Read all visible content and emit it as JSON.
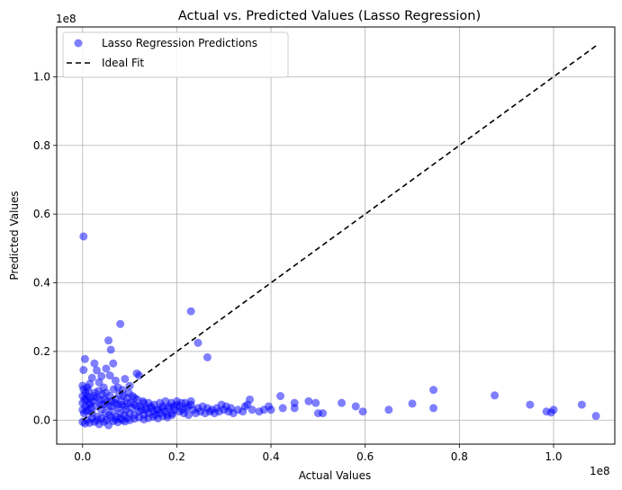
{
  "chart_data": {
    "type": "scatter",
    "title": "Actual vs. Predicted Values (Lasso Regression)",
    "xlabel": "Actual Values",
    "ylabel": "Predicted Values",
    "x_offset_label": "1e8",
    "y_offset_label": "1e8",
    "xlim": [
      -0.055,
      1.13
    ],
    "ylim": [
      -0.07,
      1.145
    ],
    "x_ticks": [
      0.0,
      0.2,
      0.4,
      0.6,
      0.8,
      1.0
    ],
    "y_ticks": [
      0.0,
      0.2,
      0.4,
      0.6,
      0.8,
      1.0
    ],
    "x_tick_labels": [
      "0.0",
      "0.2",
      "0.4",
      "0.6",
      "0.8",
      "1.0"
    ],
    "y_tick_labels": [
      "0.0",
      "0.2",
      "0.4",
      "0.6",
      "0.8",
      "1.0"
    ],
    "grid": true,
    "legend_position": "upper-left",
    "series": [
      {
        "name": "Lasso Regression Predictions",
        "kind": "scatter",
        "color": "#0000ff",
        "opacity": 0.5,
        "points": [
          [
            0.002,
            0.535
          ],
          [
            0.005,
            0.178
          ],
          [
            0.002,
            0.146
          ],
          [
            0.0,
            0.1
          ],
          [
            0.01,
            0.095
          ],
          [
            0.015,
            0.105
          ],
          [
            0.02,
            0.123
          ],
          [
            0.025,
            0.165
          ],
          [
            0.03,
            0.145
          ],
          [
            0.035,
            0.11
          ],
          [
            0.04,
            0.128
          ],
          [
            0.045,
            0.095
          ],
          [
            0.05,
            0.15
          ],
          [
            0.055,
            0.232
          ],
          [
            0.058,
            0.13
          ],
          [
            0.06,
            0.205
          ],
          [
            0.065,
            0.165
          ],
          [
            0.07,
            0.115
          ],
          [
            0.075,
            0.095
          ],
          [
            0.08,
            0.28
          ],
          [
            0.085,
            0.088
          ],
          [
            0.09,
            0.12
          ],
          [
            0.1,
            0.1
          ],
          [
            0.11,
            0.065
          ],
          [
            0.115,
            0.136
          ],
          [
            0.12,
            0.13
          ],
          [
            0.13,
            0.05
          ],
          [
            0.23,
            0.317
          ],
          [
            0.245,
            0.225
          ],
          [
            0.265,
            0.183
          ],
          [
            0.003,
            0.02
          ],
          [
            0.006,
            0.04
          ],
          [
            0.008,
            0.06
          ],
          [
            0.012,
            0.03
          ],
          [
            0.016,
            0.05
          ],
          [
            0.02,
            0.02
          ],
          [
            0.024,
            0.07
          ],
          [
            0.028,
            0.04
          ],
          [
            0.032,
            0.01
          ],
          [
            0.036,
            0.06
          ],
          [
            0.04,
            0.03
          ],
          [
            0.044,
            0.045
          ],
          [
            0.048,
            0.02
          ],
          [
            0.052,
            0.055
          ],
          [
            0.056,
            0.015
          ],
          [
            0.06,
            0.04
          ],
          [
            0.064,
            0.025
          ],
          [
            0.068,
            0.05
          ],
          [
            0.072,
            0.01
          ],
          [
            0.076,
            0.035
          ],
          [
            0.08,
            0.02
          ],
          [
            0.084,
            0.045
          ],
          [
            0.088,
            0.015
          ],
          [
            0.092,
            0.03
          ],
          [
            0.096,
            0.05
          ],
          [
            0.1,
            0.02
          ],
          [
            0.105,
            0.035
          ],
          [
            0.11,
            0.015
          ],
          [
            0.115,
            0.04
          ],
          [
            0.12,
            0.025
          ],
          [
            0.125,
            0.03
          ],
          [
            0.13,
            0.015
          ],
          [
            0.135,
            0.035
          ],
          [
            0.14,
            0.02
          ],
          [
            0.145,
            0.04
          ],
          [
            0.15,
            0.025
          ],
          [
            0.155,
            0.015
          ],
          [
            0.16,
            0.03
          ],
          [
            0.165,
            0.02
          ],
          [
            0.17,
            0.035
          ],
          [
            0.175,
            0.025
          ],
          [
            0.18,
            0.015
          ],
          [
            0.185,
            0.04
          ],
          [
            0.19,
            0.02
          ],
          [
            0.195,
            0.03
          ],
          [
            0.2,
            0.045
          ],
          [
            0.205,
            0.025
          ],
          [
            0.21,
            0.05
          ],
          [
            0.215,
            0.02
          ],
          [
            0.22,
            0.035
          ],
          [
            0.225,
            0.015
          ],
          [
            0.23,
            0.045
          ],
          [
            0.235,
            0.03
          ],
          [
            0.24,
            0.02
          ],
          [
            0.245,
            0.035
          ],
          [
            0.25,
            0.025
          ],
          [
            0.255,
            0.04
          ],
          [
            0.26,
            0.02
          ],
          [
            0.265,
            0.035
          ],
          [
            0.27,
            0.025
          ],
          [
            0.275,
            0.03
          ],
          [
            0.28,
            0.02
          ],
          [
            0.285,
            0.035
          ],
          [
            0.29,
            0.025
          ],
          [
            0.295,
            0.045
          ],
          [
            0.3,
            0.03
          ],
          [
            0.305,
            0.04
          ],
          [
            0.31,
            0.025
          ],
          [
            0.315,
            0.035
          ],
          [
            0.32,
            0.02
          ],
          [
            0.33,
            0.03
          ],
          [
            0.34,
            0.025
          ],
          [
            0.345,
            0.04
          ],
          [
            0.35,
            0.045
          ],
          [
            0.355,
            0.06
          ],
          [
            0.36,
            0.03
          ],
          [
            0.375,
            0.025
          ],
          [
            0.385,
            0.03
          ],
          [
            0.395,
            0.04
          ],
          [
            0.4,
            0.03
          ],
          [
            0.42,
            0.07
          ],
          [
            0.425,
            0.035
          ],
          [
            0.45,
            0.035
          ],
          [
            0.45,
            0.05
          ],
          [
            0.48,
            0.055
          ],
          [
            0.495,
            0.05
          ],
          [
            0.5,
            0.02
          ],
          [
            0.51,
            0.02
          ],
          [
            0.55,
            0.05
          ],
          [
            0.58,
            0.04
          ],
          [
            0.595,
            0.025
          ],
          [
            0.65,
            0.03
          ],
          [
            0.7,
            0.048
          ],
          [
            0.745,
            0.088
          ],
          [
            0.745,
            0.035
          ],
          [
            0.875,
            0.072
          ],
          [
            0.95,
            0.045
          ],
          [
            0.985,
            0.025
          ],
          [
            0.995,
            0.022
          ],
          [
            1.0,
            0.03
          ],
          [
            1.06,
            0.045
          ],
          [
            1.09,
            0.012
          ],
          [
            0.0,
            -0.005
          ],
          [
            0.005,
            -0.01
          ],
          [
            0.01,
            0.0
          ],
          [
            0.015,
            -0.008
          ],
          [
            0.02,
            0.005
          ],
          [
            0.025,
            -0.005
          ],
          [
            0.03,
            0.0
          ],
          [
            0.035,
            -0.012
          ],
          [
            0.04,
            0.005
          ],
          [
            0.045,
            -0.005
          ],
          [
            0.05,
            0.0
          ],
          [
            0.055,
            -0.015
          ],
          [
            0.06,
            0.008
          ],
          [
            0.065,
            -0.003
          ],
          [
            0.07,
            0.002
          ],
          [
            0.075,
            -0.006
          ],
          [
            0.08,
            0.004
          ],
          [
            0.085,
            0.0
          ],
          [
            0.09,
            -0.004
          ],
          [
            0.095,
            0.006
          ],
          [
            0.1,
            0.0
          ],
          [
            0.11,
            0.004
          ],
          [
            0.12,
            0.008
          ],
          [
            0.13,
            0.002
          ],
          [
            0.14,
            0.006
          ],
          [
            0.15,
            0.01
          ],
          [
            0.16,
            0.005
          ],
          [
            0.17,
            0.012
          ],
          [
            0.18,
            0.008
          ],
          [
            0.19,
            0.015
          ],
          [
            0.0,
            0.05
          ],
          [
            0.0,
            0.03
          ],
          [
            0.0,
            0.07
          ],
          [
            0.002,
            0.09
          ],
          [
            0.004,
            0.06
          ],
          [
            0.006,
            0.08
          ],
          [
            0.008,
            0.025
          ],
          [
            0.01,
            0.07
          ],
          [
            0.012,
            0.085
          ],
          [
            0.014,
            0.045
          ],
          [
            0.016,
            0.065
          ],
          [
            0.018,
            0.035
          ],
          [
            0.022,
            0.055
          ],
          [
            0.026,
            0.08
          ],
          [
            0.03,
            0.065
          ],
          [
            0.034,
            0.085
          ],
          [
            0.038,
            0.045
          ],
          [
            0.042,
            0.075
          ],
          [
            0.046,
            0.06
          ],
          [
            0.05,
            0.08
          ],
          [
            0.054,
            0.04
          ],
          [
            0.058,
            0.07
          ],
          [
            0.062,
            0.055
          ],
          [
            0.066,
            0.09
          ],
          [
            0.07,
            0.06
          ],
          [
            0.074,
            0.045
          ],
          [
            0.078,
            0.075
          ],
          [
            0.082,
            0.055
          ],
          [
            0.086,
            0.07
          ],
          [
            0.09,
            0.04
          ],
          [
            0.094,
            0.065
          ],
          [
            0.098,
            0.08
          ],
          [
            0.102,
            0.05
          ],
          [
            0.106,
            0.07
          ],
          [
            0.11,
            0.045
          ],
          [
            0.116,
            0.06
          ],
          [
            0.122,
            0.04
          ],
          [
            0.128,
            0.055
          ],
          [
            0.134,
            0.03
          ],
          [
            0.14,
            0.05
          ],
          [
            0.146,
            0.035
          ],
          [
            0.152,
            0.045
          ],
          [
            0.158,
            0.03
          ],
          [
            0.164,
            0.05
          ],
          [
            0.17,
            0.04
          ],
          [
            0.176,
            0.055
          ],
          [
            0.182,
            0.035
          ],
          [
            0.188,
            0.05
          ],
          [
            0.194,
            0.04
          ],
          [
            0.2,
            0.055
          ],
          [
            0.206,
            0.04
          ],
          [
            0.212,
            0.03
          ],
          [
            0.218,
            0.05
          ],
          [
            0.224,
            0.04
          ],
          [
            0.23,
            0.055
          ]
        ]
      },
      {
        "name": "Ideal Fit",
        "kind": "line",
        "style": "dashed",
        "color": "#000000",
        "points": [
          [
            0.0,
            0.0
          ],
          [
            1.09,
            1.09
          ]
        ]
      }
    ]
  }
}
